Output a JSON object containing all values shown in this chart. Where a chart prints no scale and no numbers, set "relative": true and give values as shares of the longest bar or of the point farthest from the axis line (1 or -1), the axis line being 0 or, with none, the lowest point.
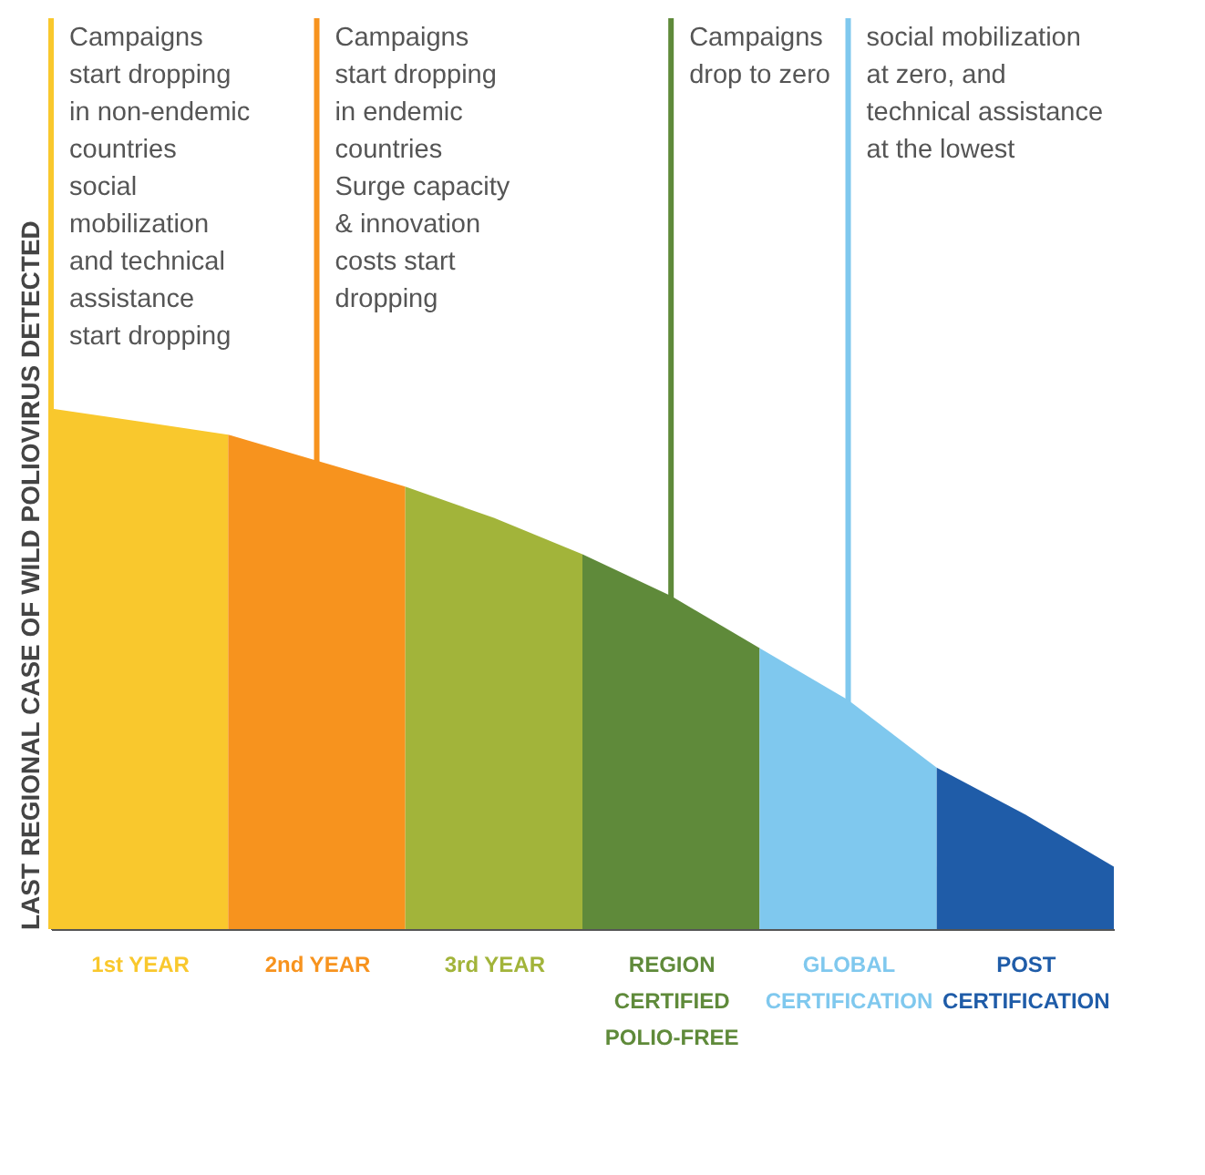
{
  "chart_data": {
    "type": "area",
    "relative": true,
    "ylabel": "LAST REGIONAL CASE OF WILD POLIOVIRUS DETECTED",
    "xlim": [
      0,
      6
    ],
    "xticks": [
      {
        "value": 0.5,
        "label": "1st YEAR"
      },
      {
        "value": 1.5,
        "label": "2nd YEAR"
      },
      {
        "value": 2.5,
        "label": "3rd YEAR"
      },
      {
        "value": 3.5,
        "label": "REGION\nCERTIFIED\nPOLIO-FREE"
      },
      {
        "value": 4.5,
        "label": "GLOBAL\nCERTIFICATION"
      },
      {
        "value": 5.5,
        "label": "POST\nCERTIFICATION"
      }
    ],
    "series": [
      {
        "color": "#f9c82d",
        "x": [
          0,
          0.5,
          1
        ],
        "values": [
          1.0,
          0.975,
          0.95
        ]
      },
      {
        "color": "#f7931e",
        "x": [
          1,
          1.5,
          2
        ],
        "values": [
          0.95,
          0.9,
          0.85
        ]
      },
      {
        "color": "#a2b43a",
        "x": [
          2,
          2.5,
          3
        ],
        "values": [
          0.85,
          0.79,
          0.72
        ]
      },
      {
        "color": "#5f8a3a",
        "x": [
          3,
          3.5,
          4
        ],
        "values": [
          0.72,
          0.64,
          0.54
        ]
      },
      {
        "color": "#7fc8ee",
        "x": [
          4,
          4.5,
          5
        ],
        "values": [
          0.54,
          0.44,
          0.31
        ]
      },
      {
        "color": "#1f5ca8",
        "x": [
          5,
          5.5,
          6
        ],
        "values": [
          0.31,
          0.22,
          0.12
        ]
      }
    ],
    "ref_lines": [
      {
        "axis": "x",
        "value": 0,
        "color": "#f9c82d",
        "label": "Campaigns\nstart dropping\nin non-endemic\ncountries\n\nsocial\nmobilization\nand technical\nassistance\nstart dropping"
      },
      {
        "axis": "x",
        "value": 1.5,
        "color": "#f7931e",
        "label": "Campaigns\nstart dropping\nin endemic\ncountries\n\nSurge capacity\n& innovation\ncosts start\ndropping"
      },
      {
        "axis": "x",
        "value": 3.5,
        "color": "#5f8a3a",
        "label": "Campaigns\ndrop to zero"
      },
      {
        "axis": "x",
        "value": 4.5,
        "color": "#7fc8ee",
        "label": "social mobilization\nat zero, and\ntechnical assistance\nat the lowest"
      }
    ],
    "grid": false
  }
}
